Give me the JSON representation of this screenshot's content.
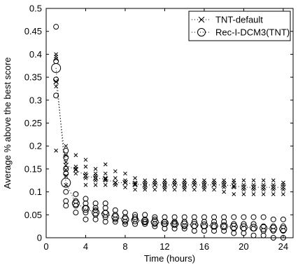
{
  "chart_data": {
    "type": "scatter",
    "xlabel": "Time (hours)",
    "ylabel": "Average % above the best score",
    "xlim": [
      0,
      25
    ],
    "ylim": [
      0,
      0.5
    ],
    "xticks": [
      0,
      4,
      8,
      12,
      16,
      20,
      24
    ],
    "yticks": [
      0,
      0.05,
      0.1,
      0.15,
      0.2,
      0.25,
      0.3,
      0.35,
      0.4,
      0.45,
      0.5
    ],
    "xtick_labels": [
      "0",
      "4",
      "8",
      "12",
      "16",
      "20",
      "24"
    ],
    "ytick_labels": [
      "0",
      "0.05",
      "0.1",
      "0.15",
      "0.2",
      "0.25",
      "0.3",
      "0.35",
      "0.4",
      "0.45",
      "0.5"
    ],
    "grid": false,
    "legend_position": "top-right",
    "series": [
      {
        "name": "TNT-default",
        "marker": "x",
        "line": "dotted",
        "mean": [
          [
            1,
            0.34
          ],
          [
            2,
            0.158
          ],
          [
            3,
            0.148
          ],
          [
            4,
            0.135
          ],
          [
            5,
            0.13
          ],
          [
            6,
            0.128
          ],
          [
            7,
            0.12
          ],
          [
            8,
            0.12
          ],
          [
            9,
            0.117
          ],
          [
            10,
            0.115
          ],
          [
            11,
            0.115
          ],
          [
            12,
            0.115
          ],
          [
            13,
            0.115
          ],
          [
            14,
            0.115
          ],
          [
            15,
            0.115
          ],
          [
            16,
            0.115
          ],
          [
            17,
            0.115
          ],
          [
            18,
            0.115
          ],
          [
            19,
            0.113
          ],
          [
            20,
            0.11
          ],
          [
            21,
            0.11
          ],
          [
            22,
            0.11
          ],
          [
            23,
            0.11
          ],
          [
            24,
            0.11
          ]
        ],
        "points": [
          [
            1,
            0.19
          ],
          [
            1,
            0.33
          ],
          [
            1,
            0.34
          ],
          [
            1,
            0.39
          ],
          [
            1,
            0.395
          ],
          [
            1,
            0.4
          ],
          [
            2,
            0.115
          ],
          [
            2,
            0.135
          ],
          [
            2,
            0.148
          ],
          [
            2,
            0.165
          ],
          [
            2,
            0.18
          ],
          [
            2,
            0.2
          ],
          [
            3,
            0.14
          ],
          [
            3,
            0.15
          ],
          [
            3,
            0.155
          ],
          [
            3,
            0.18
          ],
          [
            4,
            0.115
          ],
          [
            4,
            0.13
          ],
          [
            4,
            0.14
          ],
          [
            4,
            0.155
          ],
          [
            4,
            0.17
          ],
          [
            5,
            0.115
          ],
          [
            5,
            0.125
          ],
          [
            5,
            0.135
          ],
          [
            5,
            0.14
          ],
          [
            5,
            0.15
          ],
          [
            6,
            0.115
          ],
          [
            6,
            0.125
          ],
          [
            6,
            0.13
          ],
          [
            6,
            0.14
          ],
          [
            6,
            0.16
          ],
          [
            7,
            0.115
          ],
          [
            7,
            0.12
          ],
          [
            7,
            0.13
          ],
          [
            7,
            0.145
          ],
          [
            8,
            0.11
          ],
          [
            8,
            0.12
          ],
          [
            8,
            0.125
          ],
          [
            8,
            0.14
          ],
          [
            9,
            0.105
          ],
          [
            9,
            0.115
          ],
          [
            9,
            0.12
          ],
          [
            9,
            0.13
          ],
          [
            10,
            0.105
          ],
          [
            10,
            0.11
          ],
          [
            10,
            0.12
          ],
          [
            10,
            0.125
          ],
          [
            11,
            0.105
          ],
          [
            11,
            0.115
          ],
          [
            11,
            0.12
          ],
          [
            11,
            0.125
          ],
          [
            12,
            0.105
          ],
          [
            12,
            0.11
          ],
          [
            12,
            0.12
          ],
          [
            12,
            0.125
          ],
          [
            13,
            0.105
          ],
          [
            13,
            0.115
          ],
          [
            13,
            0.12
          ],
          [
            13,
            0.125
          ],
          [
            14,
            0.105
          ],
          [
            14,
            0.11
          ],
          [
            14,
            0.12
          ],
          [
            14,
            0.125
          ],
          [
            15,
            0.105
          ],
          [
            15,
            0.115
          ],
          [
            15,
            0.12
          ],
          [
            15,
            0.125
          ],
          [
            16,
            0.105
          ],
          [
            16,
            0.11
          ],
          [
            16,
            0.12
          ],
          [
            16,
            0.125
          ],
          [
            17,
            0.105
          ],
          [
            17,
            0.115
          ],
          [
            17,
            0.12
          ],
          [
            17,
            0.125
          ],
          [
            18,
            0.1
          ],
          [
            18,
            0.11
          ],
          [
            18,
            0.12
          ],
          [
            18,
            0.125
          ],
          [
            19,
            0.095
          ],
          [
            19,
            0.11
          ],
          [
            19,
            0.12
          ],
          [
            19,
            0.125
          ],
          [
            20,
            0.095
          ],
          [
            20,
            0.105
          ],
          [
            20,
            0.115
          ],
          [
            20,
            0.125
          ],
          [
            21,
            0.095
          ],
          [
            21,
            0.105
          ],
          [
            21,
            0.115
          ],
          [
            21,
            0.125
          ],
          [
            22,
            0.095
          ],
          [
            22,
            0.105
          ],
          [
            22,
            0.115
          ],
          [
            22,
            0.125
          ],
          [
            23,
            0.095
          ],
          [
            23,
            0.105
          ],
          [
            23,
            0.115
          ],
          [
            23,
            0.125
          ],
          [
            24,
            0.095
          ],
          [
            24,
            0.105
          ],
          [
            24,
            0.115
          ],
          [
            24,
            0.12
          ]
        ]
      },
      {
        "name": "Rec-I-DCM3(TNT)",
        "marker": "o",
        "line": "dotted",
        "mean": [
          [
            1,
            0.37
          ],
          [
            2,
            0.12
          ],
          [
            3,
            0.075
          ],
          [
            4,
            0.063
          ],
          [
            5,
            0.055
          ],
          [
            6,
            0.052
          ],
          [
            7,
            0.045
          ],
          [
            8,
            0.04
          ],
          [
            9,
            0.038
          ],
          [
            10,
            0.036
          ],
          [
            11,
            0.034
          ],
          [
            12,
            0.032
          ],
          [
            13,
            0.03
          ],
          [
            14,
            0.029
          ],
          [
            15,
            0.028
          ],
          [
            16,
            0.027
          ],
          [
            17,
            0.026
          ],
          [
            18,
            0.025
          ],
          [
            19,
            0.024
          ],
          [
            20,
            0.023
          ],
          [
            21,
            0.022
          ],
          [
            22,
            0.021
          ],
          [
            23,
            0.02
          ],
          [
            24,
            0.019
          ]
        ],
        "points": [
          [
            1,
            0.31
          ],
          [
            1,
            0.345
          ],
          [
            1,
            0.385
          ],
          [
            1,
            0.46
          ],
          [
            2,
            0.07
          ],
          [
            2,
            0.08
          ],
          [
            2,
            0.1
          ],
          [
            2,
            0.14
          ],
          [
            2,
            0.15
          ],
          [
            2,
            0.175
          ],
          [
            2,
            0.19
          ],
          [
            3,
            0.055
          ],
          [
            3,
            0.07
          ],
          [
            3,
            0.08
          ],
          [
            3,
            0.095
          ],
          [
            4,
            0.04
          ],
          [
            4,
            0.055
          ],
          [
            4,
            0.065
          ],
          [
            4,
            0.075
          ],
          [
            4,
            0.085
          ],
          [
            5,
            0.04
          ],
          [
            5,
            0.05
          ],
          [
            5,
            0.06
          ],
          [
            5,
            0.065
          ],
          [
            5,
            0.075
          ],
          [
            6,
            0.035
          ],
          [
            6,
            0.045
          ],
          [
            6,
            0.055
          ],
          [
            6,
            0.065
          ],
          [
            6,
            0.075
          ],
          [
            7,
            0.035
          ],
          [
            7,
            0.04
          ],
          [
            7,
            0.05
          ],
          [
            7,
            0.06
          ],
          [
            8,
            0.03
          ],
          [
            8,
            0.035
          ],
          [
            8,
            0.045
          ],
          [
            8,
            0.055
          ],
          [
            9,
            0.03
          ],
          [
            9,
            0.04
          ],
          [
            9,
            0.045
          ],
          [
            9,
            0.05
          ],
          [
            10,
            0.03
          ],
          [
            10,
            0.035
          ],
          [
            10,
            0.04
          ],
          [
            10,
            0.05
          ],
          [
            11,
            0.025
          ],
          [
            11,
            0.03
          ],
          [
            11,
            0.04
          ],
          [
            11,
            0.045
          ],
          [
            12,
            0.02
          ],
          [
            12,
            0.03
          ],
          [
            12,
            0.035
          ],
          [
            12,
            0.045
          ],
          [
            13,
            0.02
          ],
          [
            13,
            0.03
          ],
          [
            13,
            0.035
          ],
          [
            13,
            0.045
          ],
          [
            14,
            0.02
          ],
          [
            14,
            0.025
          ],
          [
            14,
            0.035
          ],
          [
            14,
            0.045
          ],
          [
            15,
            0.015
          ],
          [
            15,
            0.025
          ],
          [
            15,
            0.035
          ],
          [
            15,
            0.045
          ],
          [
            16,
            0.015
          ],
          [
            16,
            0.025
          ],
          [
            16,
            0.035
          ],
          [
            16,
            0.045
          ],
          [
            17,
            0.015
          ],
          [
            17,
            0.025
          ],
          [
            17,
            0.035
          ],
          [
            17,
            0.045
          ],
          [
            18,
            0.015
          ],
          [
            18,
            0.025
          ],
          [
            18,
            0.035
          ],
          [
            18,
            0.045
          ],
          [
            19,
            0.01
          ],
          [
            19,
            0.02
          ],
          [
            19,
            0.03
          ],
          [
            19,
            0.045
          ],
          [
            20,
            0.01
          ],
          [
            20,
            0.02
          ],
          [
            20,
            0.03
          ],
          [
            20,
            0.045
          ],
          [
            21,
            0.005
          ],
          [
            21,
            0.02
          ],
          [
            21,
            0.03
          ],
          [
            21,
            0.045
          ],
          [
            22,
            0.005
          ],
          [
            22,
            0.015
          ],
          [
            22,
            0.025
          ],
          [
            22,
            0.045
          ],
          [
            23,
            0.0
          ],
          [
            23,
            0.015
          ],
          [
            23,
            0.025
          ],
          [
            23,
            0.04
          ],
          [
            24,
            0.0
          ],
          [
            24,
            0.015
          ],
          [
            24,
            0.025
          ],
          [
            24,
            0.04
          ]
        ]
      }
    ]
  }
}
